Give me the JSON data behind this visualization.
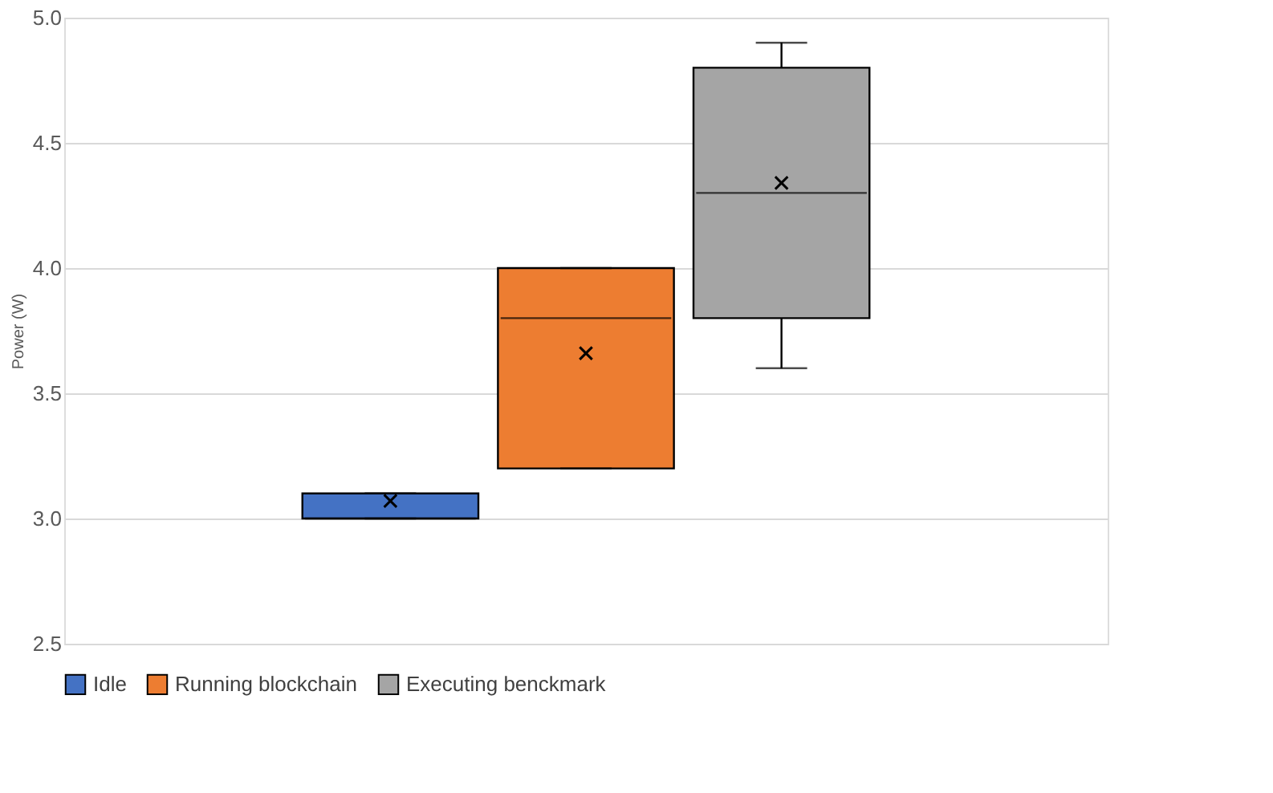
{
  "chart_data": {
    "type": "box",
    "ylabel": "Power (W)",
    "categories": [
      null
    ],
    "series": [
      {
        "name": "Idle",
        "color": "#4472c4",
        "boxes": [
          {
            "low": 3.0,
            "q1": 3.0,
            "median": 3.0,
            "q3": 3.1,
            "high": 3.1,
            "mean": 3.07
          }
        ]
      },
      {
        "name": "Running blockchain",
        "color": "#ed7d31",
        "boxes": [
          {
            "low": 3.2,
            "q1": 3.2,
            "median": 3.8,
            "q3": 4.0,
            "high": 4.0,
            "mean": 3.66
          }
        ]
      },
      {
        "name": "Executing benckmark",
        "color": "#a5a5a5",
        "boxes": [
          {
            "low": 3.6,
            "q1": 3.8,
            "median": 4.3,
            "q3": 4.8,
            "high": 4.9,
            "mean": 4.34
          }
        ]
      }
    ],
    "ylim": [
      2.5,
      5.0
    ],
    "yticks": [
      {
        "value": 2.5,
        "label": "2.5"
      },
      {
        "value": 3,
        "label": "3.0"
      },
      {
        "value": 3.5,
        "label": "3.5"
      },
      {
        "value": 4,
        "label": "4.0"
      },
      {
        "value": 4.5,
        "label": "4.5"
      },
      {
        "value": 5,
        "label": "5.0"
      }
    ],
    "grid": "y",
    "legend": "bottom",
    "tick_labels": "y"
  }
}
